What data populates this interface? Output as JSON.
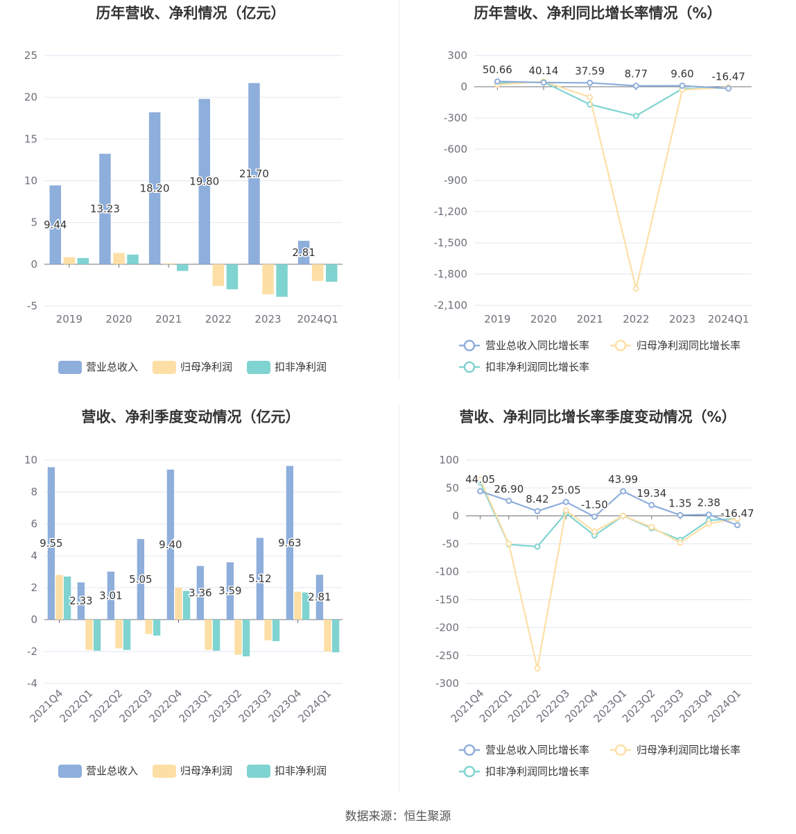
{
  "colors": {
    "revenue": "#8eaedb",
    "net_profit": "#fddfa6",
    "deducted_profit": "#7fd3d0",
    "revenue_line": "#8eaedb",
    "net_line": "#fddfa6",
    "deducted_line": "#7fd3d0"
  },
  "source_text": "数据来源：恒生聚源",
  "chart_data": [
    {
      "id": "annual-bar",
      "type": "bar",
      "title": "历年营收、净利情况（亿元）",
      "categories": [
        "2019",
        "2020",
        "2021",
        "2022",
        "2023",
        "2024Q1"
      ],
      "ylim": [
        -5,
        25
      ],
      "yticks": [
        25,
        20,
        15,
        10,
        5,
        0,
        -5
      ],
      "ytick_labels": [
        "25",
        "20",
        "15",
        "10",
        "5",
        "0",
        "-5"
      ],
      "series": [
        {
          "name": "营业总收入",
          "color_key": "revenue",
          "values": [
            9.44,
            13.23,
            18.2,
            19.8,
            21.7,
            2.81
          ],
          "labels": [
            "9.44",
            "13.23",
            "18.20",
            "19.80",
            "21.70",
            "2.81"
          ]
        },
        {
          "name": "归母净利润",
          "color_key": "net_profit",
          "values": [
            0.85,
            1.35,
            0.1,
            -2.6,
            -3.6,
            -2.0
          ]
        },
        {
          "name": "扣非净利润",
          "color_key": "deducted_profit",
          "values": [
            0.75,
            1.15,
            -0.8,
            -3.0,
            -3.9,
            -2.1
          ]
        }
      ],
      "legend": [
        "营业总收入",
        "归母净利润",
        "扣非净利润"
      ]
    },
    {
      "id": "annual-growth",
      "type": "line",
      "title": "历年营收、净利同比增长率情况（%）",
      "categories": [
        "2019",
        "2020",
        "2021",
        "2022",
        "2023",
        "2024Q1"
      ],
      "ylim": [
        -2100,
        300
      ],
      "yticks": [
        300,
        0,
        -300,
        -600,
        -900,
        -1200,
        -1500,
        -1800,
        -2100
      ],
      "ytick_labels": [
        "300",
        "0",
        "-300",
        "-600",
        "-900",
        "-1,200",
        "-1,500",
        "-1,800",
        "-2,100"
      ],
      "series": [
        {
          "name": "营业总收入同比增长率",
          "color_key": "revenue_line",
          "values": [
            50.66,
            40.14,
            37.59,
            8.77,
            9.6,
            -16.47
          ],
          "labels": [
            "50.66",
            "40.14",
            "37.59",
            "8.77",
            "9.60",
            "-16.47"
          ]
        },
        {
          "name": "归母净利润同比增长率",
          "color_key": "net_line",
          "values": [
            20,
            50,
            -100,
            -1940,
            -30,
            -5
          ]
        },
        {
          "name": "扣非净利润同比增长率",
          "color_key": "deducted_line",
          "values": [
            35,
            45,
            -170,
            -280,
            -20,
            -10
          ]
        }
      ],
      "legend": [
        "营业总收入同比增长率",
        "归母净利润同比增长率",
        "扣非净利润同比增长率"
      ]
    },
    {
      "id": "quarterly-bar",
      "type": "bar",
      "title": "营收、净利季度变动情况（亿元）",
      "categories": [
        "2021Q4",
        "2022Q1",
        "2022Q2",
        "2022Q3",
        "2022Q4",
        "2023Q1",
        "2023Q2",
        "2023Q3",
        "2023Q4",
        "2024Q1"
      ],
      "ylim": [
        -4,
        10
      ],
      "yticks": [
        10,
        8,
        6,
        4,
        2,
        0,
        -2,
        -4
      ],
      "ytick_labels": [
        "10",
        "8",
        "6",
        "4",
        "2",
        "0",
        "-2",
        "-4"
      ],
      "series": [
        {
          "name": "营业总收入",
          "color_key": "revenue",
          "values": [
            9.55,
            2.33,
            3.01,
            5.05,
            9.4,
            3.36,
            3.59,
            5.12,
            9.63,
            2.81
          ],
          "labels": [
            "9.55",
            "2.33",
            "3.01",
            "5.05",
            "9.40",
            "3.36",
            "3.59",
            "5.12",
            "9.63",
            "2.81"
          ]
        },
        {
          "name": "归母净利润",
          "color_key": "net_profit",
          "values": [
            2.8,
            -1.9,
            -1.8,
            -0.9,
            2.0,
            -1.9,
            -2.2,
            -1.3,
            1.75,
            -2.0
          ]
        },
        {
          "name": "扣非净利润",
          "color_key": "deducted_profit",
          "values": [
            2.7,
            -1.95,
            -1.9,
            -1.0,
            1.8,
            -1.95,
            -2.3,
            -1.35,
            1.7,
            -2.05
          ]
        }
      ],
      "legend": [
        "营业总收入",
        "归母净利润",
        "扣非净利润"
      ]
    },
    {
      "id": "quarterly-growth",
      "type": "line",
      "title": "营收、净利同比增长率季度变动情况（%）",
      "categories": [
        "2021Q4",
        "2022Q1",
        "2022Q2",
        "2022Q3",
        "2022Q4",
        "2023Q1",
        "2023Q2",
        "2023Q3",
        "2023Q4",
        "2024Q1"
      ],
      "ylim": [
        -300,
        100
      ],
      "yticks": [
        100,
        50,
        0,
        -50,
        -100,
        -150,
        -200,
        -250,
        -300
      ],
      "ytick_labels": [
        "100",
        "50",
        "0",
        "-50",
        "-100",
        "-150",
        "-200",
        "-250",
        "-300"
      ],
      "series": [
        {
          "name": "营业总收入同比增长率",
          "color_key": "revenue_line",
          "values": [
            44.05,
            26.9,
            8.42,
            25.05,
            -1.5,
            43.99,
            19.34,
            1.35,
            2.38,
            -16.47
          ],
          "labels": [
            "44.05",
            "26.90",
            "8.42",
            "25.05",
            "-1.50",
            "43.99",
            "19.34",
            "1.35",
            "2.38",
            "-16.47"
          ]
        },
        {
          "name": "归母净利润同比增长率",
          "color_key": "net_line",
          "values": [
            65,
            -50,
            -273,
            10,
            -28,
            0,
            -20,
            -48,
            -14,
            -5
          ]
        },
        {
          "name": "扣非净利润同比增长率",
          "color_key": "deducted_line",
          "values": [
            60,
            -51,
            -55,
            5,
            -35,
            0,
            -22,
            -43,
            -8,
            -5
          ]
        }
      ],
      "legend": [
        "营业总收入同比增长率",
        "归母净利润同比增长率",
        "扣非净利润同比增长率"
      ]
    }
  ]
}
